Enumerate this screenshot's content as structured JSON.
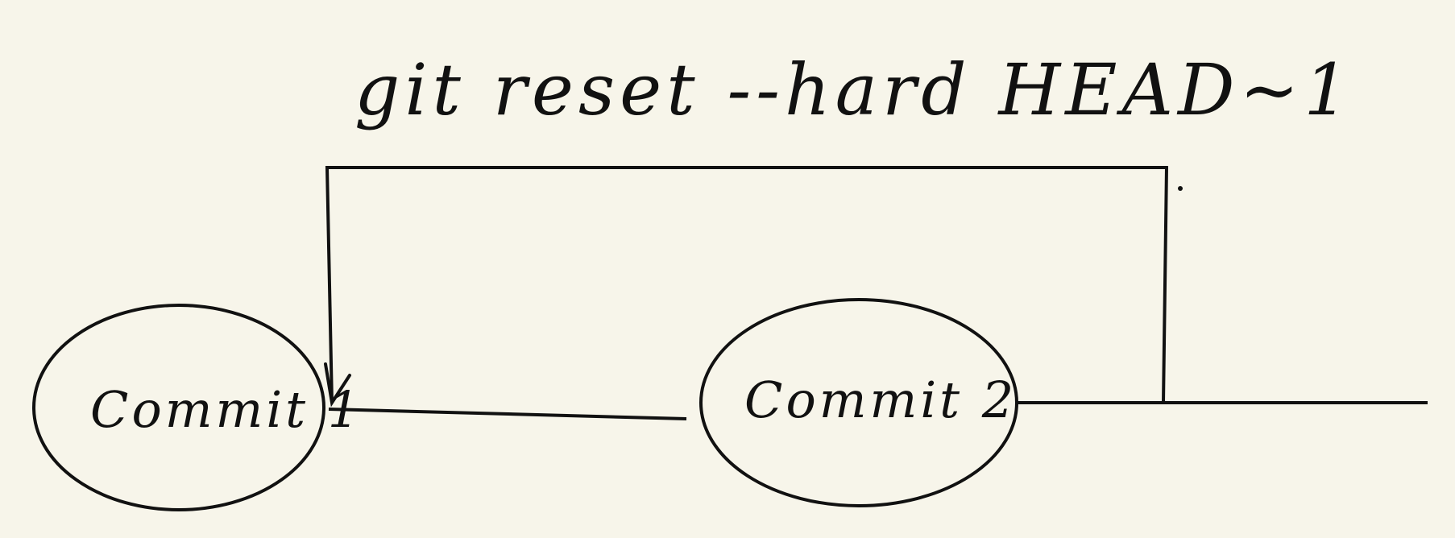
{
  "diagram": {
    "command_label": "git reset --hard HEAD~1",
    "nodes": [
      {
        "label": "Commit 1"
      },
      {
        "label": "Commit 2"
      }
    ],
    "colors": {
      "background": "#f7f5ea",
      "ink": "#111111"
    }
  }
}
